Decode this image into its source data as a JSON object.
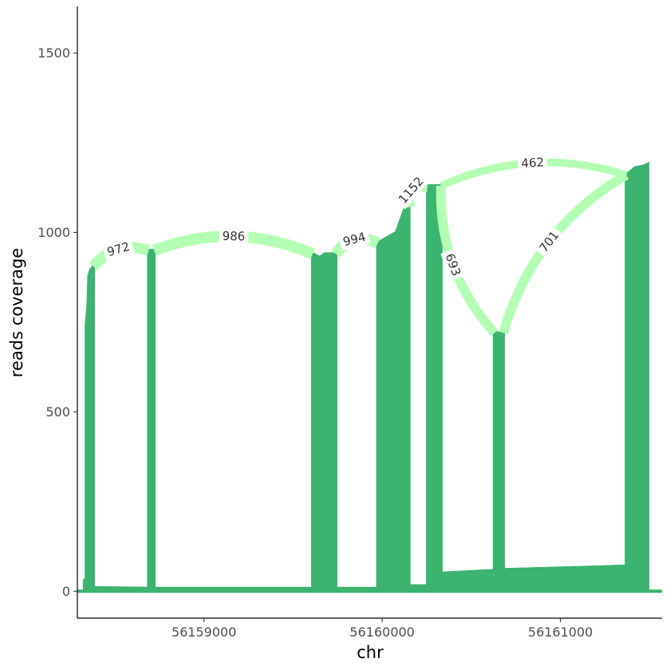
{
  "chart_data": {
    "type": "area",
    "title": "",
    "xlabel": "chr",
    "ylabel": "reads coverage",
    "xlim": [
      56158290,
      56161570
    ],
    "ylim": [
      -75,
      1630
    ],
    "x_ticks": [
      {
        "value": 56159000,
        "label": "56159000"
      },
      {
        "value": 56160000,
        "label": "56160000"
      },
      {
        "value": 56161000,
        "label": "56161000"
      }
    ],
    "y_ticks": [
      {
        "value": 0,
        "label": "0"
      },
      {
        "value": 500,
        "label": "500"
      },
      {
        "value": 1000,
        "label": "1000"
      },
      {
        "value": 1500,
        "label": "1500"
      }
    ],
    "grid": false,
    "legend": "none",
    "colors": {
      "coverage": "#3cb371",
      "junction": "#b3ffb3",
      "axis": "#000000"
    },
    "coverage": [
      [
        56158290,
        0
      ],
      [
        56158330,
        0
      ],
      [
        56158330,
        30
      ],
      [
        56158340,
        35
      ],
      [
        56158340,
        740
      ],
      [
        56158350,
        800
      ],
      [
        56158355,
        880
      ],
      [
        56158365,
        895
      ],
      [
        56158380,
        905
      ],
      [
        56158380,
        10
      ],
      [
        56158690,
        8
      ],
      [
        56158690,
        950
      ],
      [
        56158720,
        950
      ],
      [
        56158720,
        8
      ],
      [
        56159610,
        8
      ],
      [
        56159610,
        940
      ],
      [
        56159650,
        930
      ],
      [
        56159680,
        940
      ],
      [
        56159740,
        940
      ],
      [
        56159740,
        8
      ],
      [
        56159975,
        8
      ],
      [
        56159975,
        970
      ],
      [
        56160080,
        1000
      ],
      [
        56160130,
        1070
      ],
      [
        56160150,
        1120
      ],
      [
        56160150,
        15
      ],
      [
        56160255,
        15
      ],
      [
        56160255,
        1130
      ],
      [
        56160330,
        1130
      ],
      [
        56160330,
        50
      ],
      [
        56160630,
        58
      ],
      [
        56160630,
        720
      ],
      [
        56160680,
        720
      ],
      [
        56160680,
        60
      ],
      [
        56161370,
        70
      ],
      [
        56161370,
        1160
      ],
      [
        56161420,
        1180
      ],
      [
        56161470,
        1185
      ],
      [
        56161490,
        1190
      ],
      [
        56161490,
        0
      ],
      [
        56161570,
        0
      ]
    ],
    "junctions": [
      {
        "label": "972",
        "x1": 56158380,
        "y1": 905,
        "x2": 56158690,
        "y2": 950
      },
      {
        "label": "986",
        "x1": 56158720,
        "y1": 950,
        "x2": 56159610,
        "y2": 940
      },
      {
        "label": "994",
        "x1": 56159740,
        "y1": 940,
        "x2": 56159975,
        "y2": 970
      },
      {
        "label": "1152",
        "x1": 56160150,
        "y1": 1070,
        "x2": 56160255,
        "y2": 1130
      },
      {
        "label": "462",
        "x1": 56160330,
        "y1": 1130,
        "x2": 56161370,
        "y2": 1160
      },
      {
        "label": "693",
        "x1": 56160330,
        "y1": 1130,
        "x2": 56160630,
        "y2": 720
      },
      {
        "label": "701",
        "x1": 56160680,
        "y1": 720,
        "x2": 56161370,
        "y2": 1160
      }
    ]
  }
}
